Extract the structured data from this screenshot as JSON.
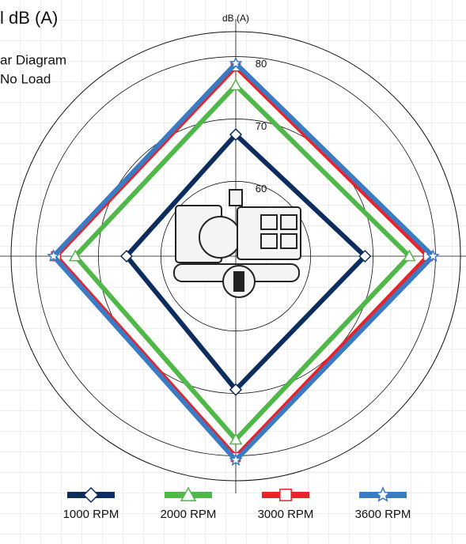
{
  "chart_data": {
    "type": "radar",
    "title": "l dB (A)",
    "subtitle": [
      "ar Diagram",
      "No Load"
    ],
    "axis_label": "dB (A)",
    "categories": [
      null,
      null,
      null,
      null
    ],
    "rlim": [
      48,
      84
    ],
    "rticks": [
      60,
      70,
      80
    ],
    "grid": true,
    "legend": "bottom",
    "series": [
      {
        "name": "1000 RPM",
        "color": "#0d2d5e",
        "marker": "diamond",
        "values": [
          67.5,
          68.7,
          69.4,
          65.5
        ]
      },
      {
        "name": "2000 RPM",
        "color": "#4fb848",
        "marker": "triangle",
        "values": [
          75.4,
          75.8,
          77.4,
          73.7
        ]
      },
      {
        "name": "3000 RPM",
        "color": "#e8232a",
        "marker": "square",
        "values": [
          78.4,
          78.8,
          80.2,
          76.8
        ]
      },
      {
        "name": "3600 RPM",
        "color": "#3b7bc4",
        "marker": "star",
        "values": [
          78.9,
          79.6,
          80.7,
          77.2
        ]
      }
    ]
  }
}
